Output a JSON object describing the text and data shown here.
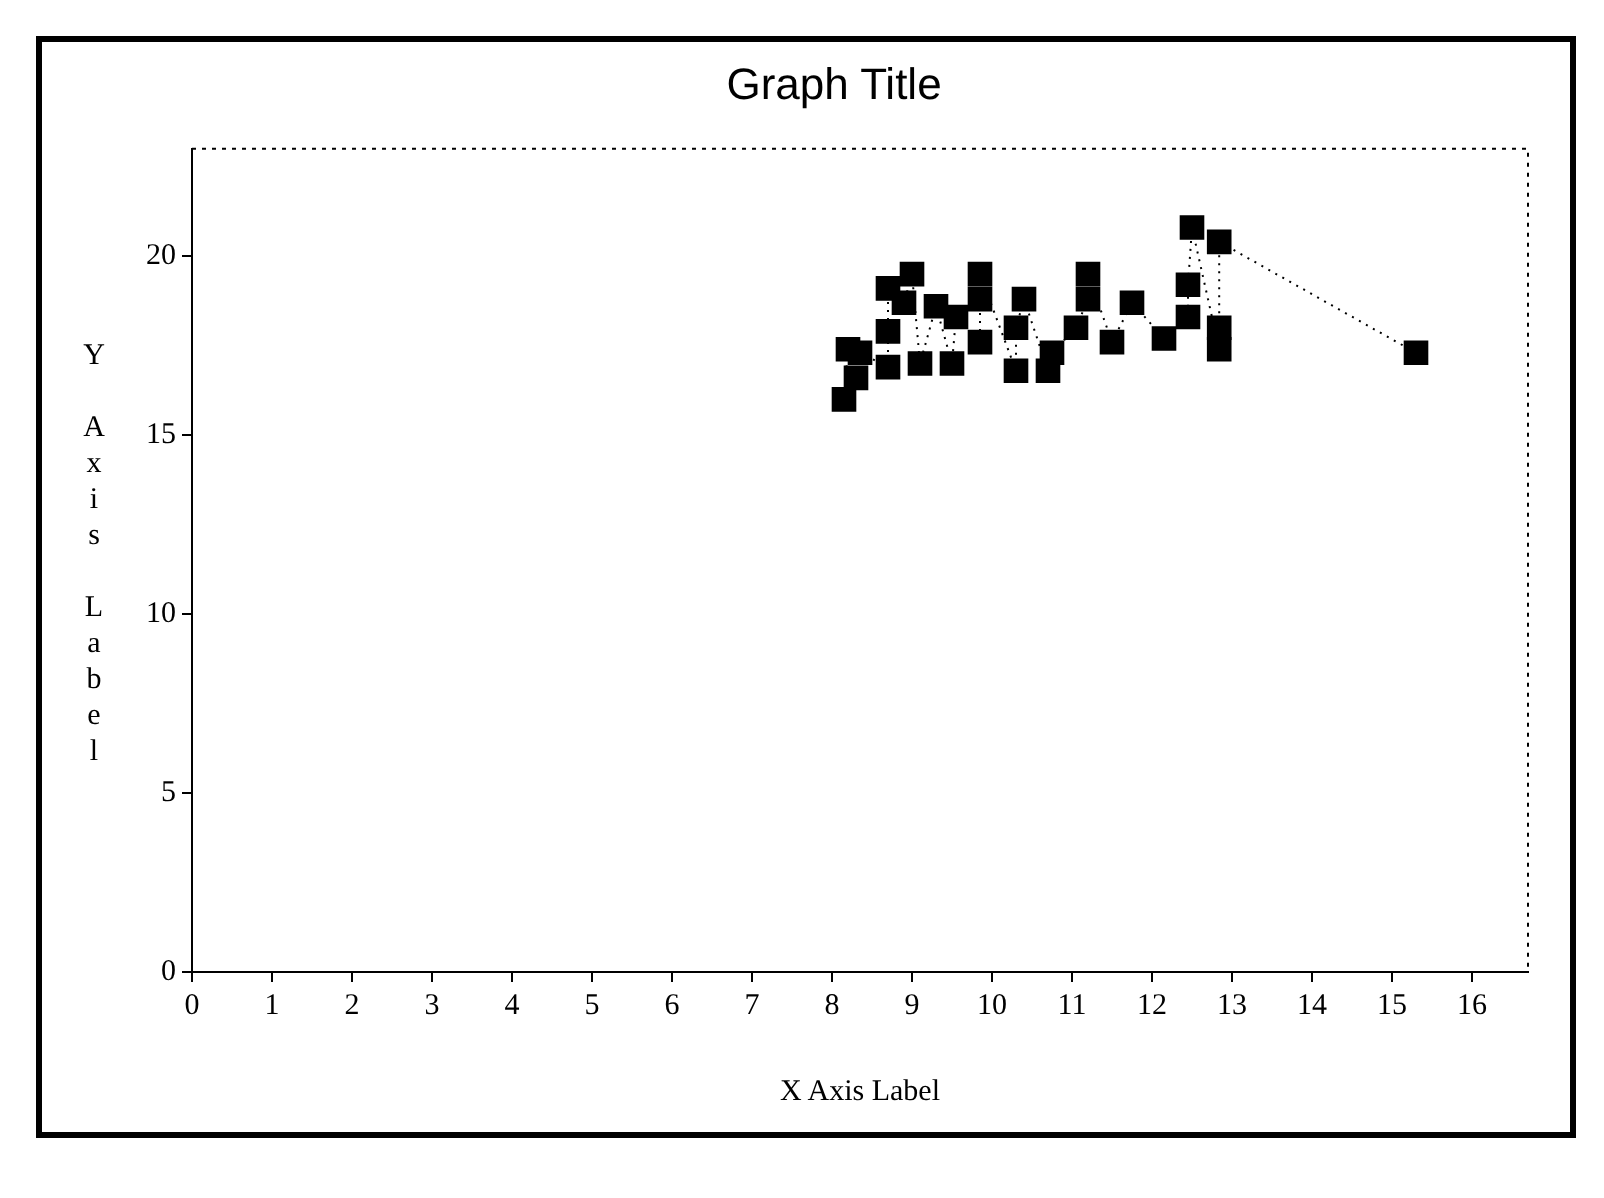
{
  "chart_data": {
    "type": "line",
    "title": "Graph Title",
    "xlabel": "X Axis Label",
    "ylabel": "Y Axis Label",
    "x": [
      8.15,
      8.2,
      8.3,
      8.35,
      8.7,
      8.7,
      8.7,
      8.9,
      9.0,
      9.1,
      9.3,
      9.5,
      9.55,
      9.85,
      9.85,
      9.85,
      10.3,
      10.3,
      10.4,
      10.7,
      10.75,
      11.05,
      11.2,
      11.2,
      11.5,
      11.75,
      12.15,
      12.45,
      12.45,
      12.5,
      12.84,
      12.84,
      12.84,
      15.3
    ],
    "values": [
      16.0,
      17.4,
      16.6,
      17.3,
      16.9,
      17.9,
      19.1,
      18.7,
      19.5,
      17.0,
      18.6,
      17.0,
      18.3,
      17.6,
      18.8,
      19.5,
      16.8,
      18.0,
      18.8,
      16.8,
      17.3,
      18.0,
      18.8,
      19.5,
      17.6,
      18.7,
      17.7,
      18.3,
      19.2,
      20.8,
      17.4,
      18.0,
      20.4,
      17.3
    ],
    "color": "#000000",
    "marker": "square",
    "line_style": "dotted",
    "xlim": [
      0,
      16.7
    ],
    "xticks": [
      0,
      1,
      2,
      3,
      4,
      5,
      6,
      7,
      8,
      9,
      10,
      11,
      12,
      13,
      14,
      15,
      16
    ],
    "ylim": [
      0,
      23
    ],
    "yticks": [
      0,
      5,
      10,
      15,
      20
    ],
    "grid": false,
    "legend": false
  }
}
